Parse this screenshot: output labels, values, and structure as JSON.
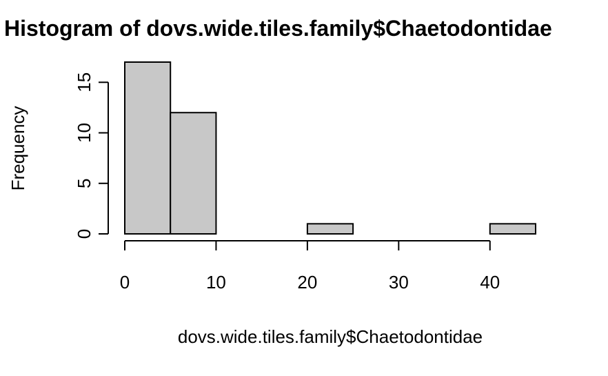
{
  "chart_data": {
    "type": "bar",
    "title": "Histogram of dovs.wide.tiles.family$Chaetodontidae",
    "xlabel": "dovs.wide.tiles.family$Chaetodontidae",
    "ylabel": "Frequency",
    "bins": [
      {
        "from": 0,
        "to": 5,
        "count": 17
      },
      {
        "from": 5,
        "to": 10,
        "count": 12
      },
      {
        "from": 10,
        "to": 15,
        "count": 0
      },
      {
        "from": 15,
        "to": 20,
        "count": 0
      },
      {
        "from": 20,
        "to": 25,
        "count": 1
      },
      {
        "from": 25,
        "to": 30,
        "count": 0
      },
      {
        "from": 30,
        "to": 35,
        "count": 0
      },
      {
        "from": 35,
        "to": 40,
        "count": 0
      },
      {
        "from": 40,
        "to": 45,
        "count": 1
      }
    ],
    "xlim": [
      0,
      45
    ],
    "ylim": [
      0,
      17
    ],
    "x_ticks": [
      0,
      10,
      20,
      30,
      40
    ],
    "y_ticks": [
      0,
      5,
      10,
      15
    ],
    "bar_fill": "#c8c8c8",
    "bar_stroke": "#000000",
    "grid": false,
    "legend": "none"
  }
}
